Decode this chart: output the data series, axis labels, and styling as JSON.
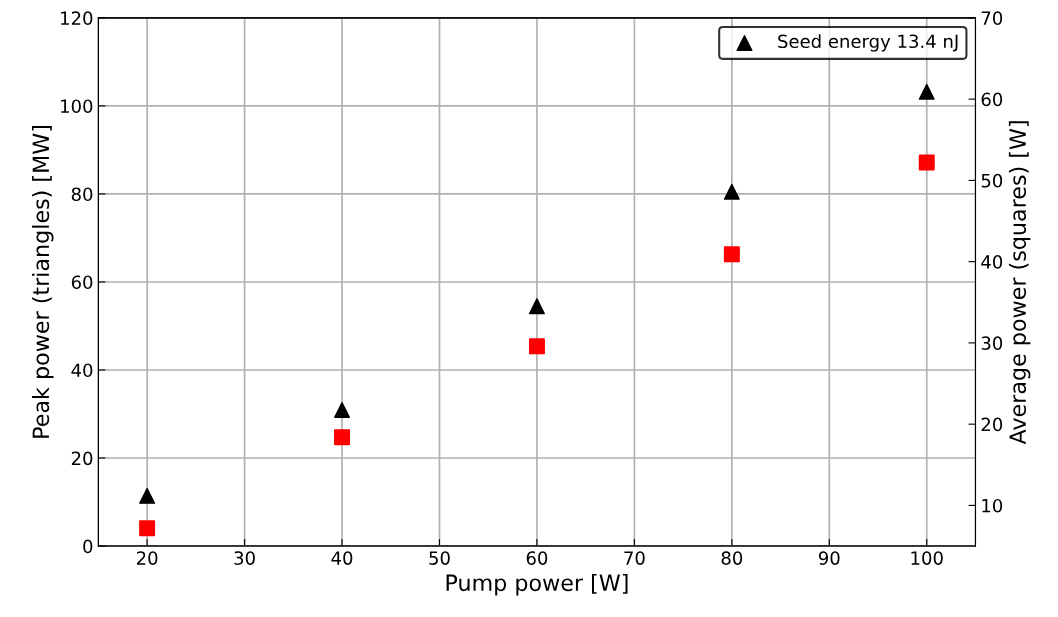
{
  "chart_data": {
    "type": "scatter",
    "xlabel": "Pump power [W]",
    "ylabel": "Peak power (triangles) [MW]",
    "y2label": "Average power (squares) [W]",
    "x": [
      20,
      40,
      60,
      80,
      100
    ],
    "series": [
      {
        "name": "Seed energy 13.4 nJ",
        "color": "#000000",
        "marker": "triangle",
        "values": [
          11.4,
          30.9,
          54.5,
          80.5,
          103.2
        ]
      },
      {
        "color": "#ff0000",
        "marker": "square",
        "axis": "y2",
        "values": [
          7.2,
          18.4,
          29.6,
          40.9,
          52.2
        ]
      }
    ],
    "xlim": [
      15,
      105
    ],
    "xticks": [
      20,
      30,
      40,
      50,
      60,
      70,
      80,
      90,
      100
    ],
    "ylim": [
      0,
      120
    ],
    "yticks": [
      0,
      20,
      40,
      60,
      80,
      100,
      120
    ],
    "y2lim": [
      5,
      70
    ],
    "y2ticks": [
      10,
      20,
      30,
      40,
      50,
      60,
      70
    ],
    "grid": true,
    "legend": "top right"
  }
}
